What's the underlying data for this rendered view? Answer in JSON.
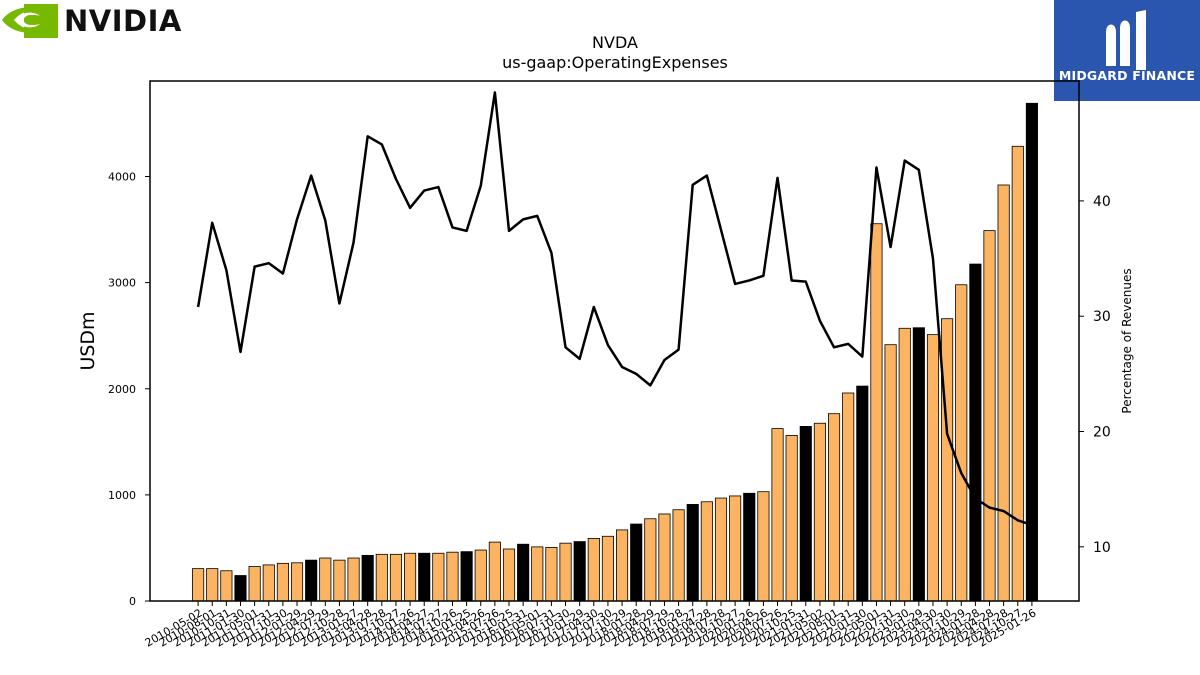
{
  "logos": {
    "left_brand": "NVIDIA",
    "right_brand": "MIDGARD FINANCE"
  },
  "colors": {
    "bar_regular": "#fdb462",
    "bar_highlight": "#000000",
    "line": "#000000",
    "nvidia_green": "#76b900",
    "midgard_blue": "#2a56b0"
  },
  "chart_data": {
    "type": "bar",
    "title": "NVDA",
    "subtitle": "us-gaap:OperatingExpenses",
    "ylabel": "USDm",
    "y2label": "Percentage of Revenues",
    "ylim": [
      0,
      4900
    ],
    "y2lim": [
      5.3,
      50.4
    ],
    "yticks": [
      "0",
      "1000",
      "2000",
      "3000",
      "4000"
    ],
    "y2ticks": [
      "10",
      "20",
      "30",
      "40"
    ],
    "legend": "none",
    "grid": false,
    "categories": [
      "2010-05-02",
      "2010-08-01",
      "2010-10-31",
      "2011-01-30",
      "2011-05-01",
      "2011-07-31",
      "2011-10-30",
      "2012-01-29",
      "2012-04-29",
      "2012-07-29",
      "2012-10-28",
      "2013-01-27",
      "2013-04-28",
      "2013-07-28",
      "2013-10-27",
      "2014-01-26",
      "2014-04-27",
      "2014-07-27",
      "2014-10-26",
      "2015-01-25",
      "2015-04-26",
      "2015-07-26",
      "2015-10-25",
      "2016-01-31",
      "2016-05-01",
      "2016-07-31",
      "2016-10-30",
      "2017-01-29",
      "2017-04-30",
      "2017-07-30",
      "2017-10-29",
      "2018-01-28",
      "2018-04-29",
      "2018-07-29",
      "2018-10-28",
      "2019-01-27",
      "2019-04-28",
      "2019-07-28",
      "2019-10-27",
      "2020-01-26",
      "2020-04-26",
      "2020-07-26",
      "2020-10-25",
      "2021-01-31",
      "2021-05-02",
      "2021-08-01",
      "2021-10-31",
      "2022-01-30",
      "2022-05-01",
      "2022-07-31",
      "2022-10-30",
      "2023-01-29",
      "2023-04-30",
      "2023-07-30",
      "2023-10-29",
      "2024-01-28",
      "2024-04-28",
      "2024-07-28",
      "2024-10-27",
      "2025-01-26"
    ],
    "series": [
      {
        "name": "OperatingExpenses",
        "values": [
          305,
          305,
          285,
          240,
          325,
          340,
          355,
          360,
          385,
          405,
          385,
          405,
          430,
          440,
          440,
          450,
          450,
          450,
          460,
          465,
          480,
          555,
          490,
          535,
          510,
          505,
          545,
          560,
          590,
          610,
          670,
          725,
          775,
          820,
          860,
          910,
          935,
          970,
          990,
          1015,
          1030,
          1625,
          1560,
          1645,
          1675,
          1765,
          1960,
          2025,
          3555,
          2415,
          2570,
          2575,
          2510,
          2660,
          2980,
          3175,
          3490,
          3920,
          4285,
          4690
        ],
        "highlighted": [
          3,
          8,
          12,
          16,
          19,
          23,
          27,
          31,
          35,
          39,
          43,
          47,
          51,
          55,
          59
        ]
      },
      {
        "name": "Percentage of Revenues",
        "values": [
          30.8,
          38.1,
          34.0,
          26.9,
          34.3,
          34.6,
          33.7,
          38.4,
          42.2,
          38.3,
          31.1,
          36.4,
          45.6,
          44.9,
          41.9,
          39.4,
          40.9,
          41.2,
          37.7,
          37.4,
          41.3,
          49.4,
          37.4,
          38.4,
          38.7,
          35.5,
          27.3,
          26.3,
          30.8,
          27.5,
          25.6,
          25.0,
          24.0,
          26.2,
          27.1,
          41.4,
          42.2,
          37.5,
          32.8,
          33.1,
          33.5,
          42.0,
          33.1,
          33.0,
          29.6,
          27.3,
          27.6,
          26.5,
          42.9,
          36.0,
          43.5,
          42.7,
          35.0,
          19.8,
          16.4,
          14.2,
          13.4,
          13.1,
          12.3,
          11.9
        ]
      }
    ]
  }
}
